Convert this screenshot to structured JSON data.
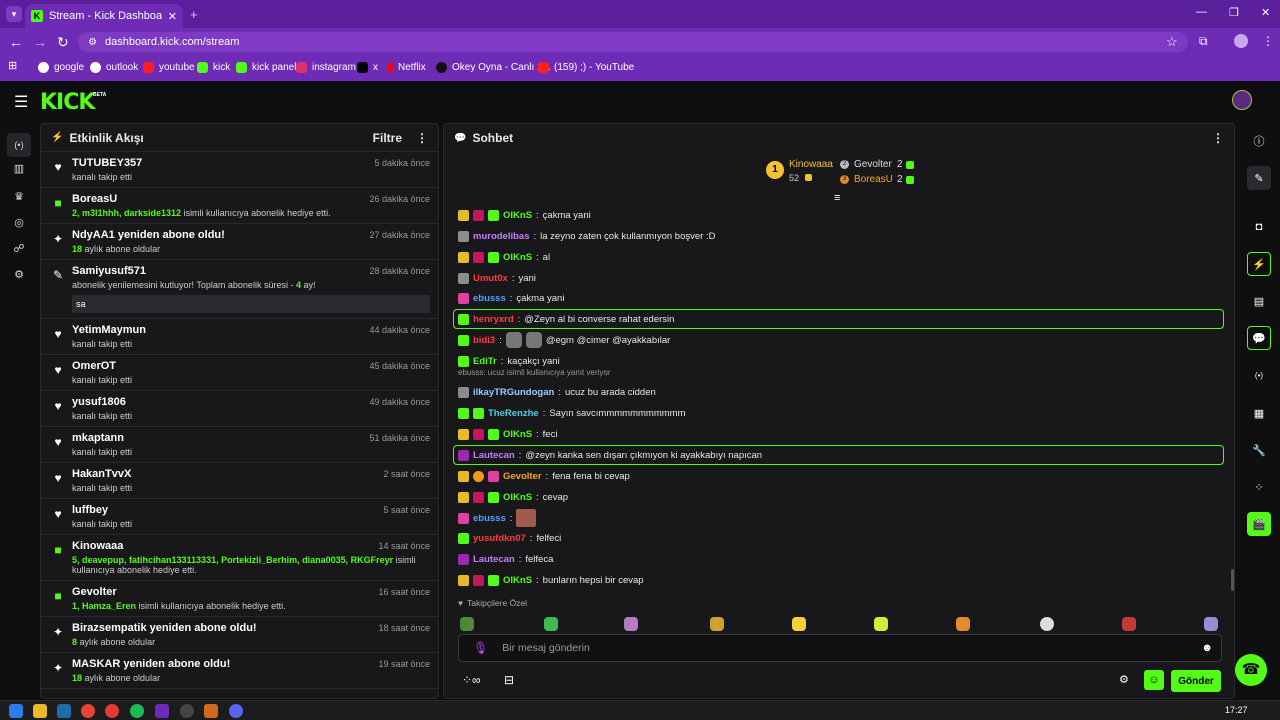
{
  "browser": {
    "tab_title": "Stream - Kick Dashboard",
    "url": "dashboard.kick.com/stream",
    "bookmarks": [
      "google",
      "outlook",
      "youtube",
      "kick",
      "kick panel",
      "instagram",
      "x",
      "Netflix",
      "Okey Oyna - Canlı 1...",
      "(159) ;) - YouTube"
    ]
  },
  "app": {
    "logo": "KICK",
    "logo_badge": "BETA"
  },
  "activity": {
    "title": "Etkinlik Akışı",
    "filter_label": "Filtre",
    "events": [
      {
        "icon": "heart-icon",
        "name": "TUTUBEY357",
        "sub": "kanalı takip etti",
        "time": "5 dakika önce"
      },
      {
        "icon": "gift-icon",
        "name": "BoreasU",
        "sub_hl": "2, m3l1hhh, darkside1312",
        "sub": " isimli kullanıcıya abonelik hediye etti.",
        "time": "26 dakika önce"
      },
      {
        "icon": "sparkle-icon",
        "name": "NdyAA1 yeniden abone oldu!",
        "sub_hl": "18",
        "sub": " aylık abone oldular",
        "time": "27 dakika önce"
      },
      {
        "icon": "party-icon",
        "name": "Samiyusuf571",
        "sub": "abonelik yenilemesini kutluyor! Toplam abonelik süresi - ",
        "sub_hl2": "4",
        "sub_end": " ay!",
        "message": "sa",
        "time": "28 dakika önce"
      },
      {
        "icon": "heart-icon",
        "name": "YetimMaymun",
        "sub": "kanalı takip etti",
        "time": "44 dakika önce"
      },
      {
        "icon": "heart-icon",
        "name": "OmerOT",
        "sub": "kanalı takip etti",
        "time": "45 dakika önce"
      },
      {
        "icon": "heart-icon",
        "name": "yusuf1806",
        "sub": "kanalı takip etti",
        "time": "49 dakika önce"
      },
      {
        "icon": "heart-icon",
        "name": "mkaptann",
        "sub": "kanalı takip etti",
        "time": "51 dakika önce"
      },
      {
        "icon": "heart-icon",
        "name": "HakanTvvX",
        "sub": "kanalı takip etti",
        "time": "2 saat önce"
      },
      {
        "icon": "heart-icon",
        "name": "luffbey",
        "sub": "kanalı takip etti",
        "time": "5 saat önce"
      },
      {
        "icon": "gift-icon",
        "name": "Kinowaaa",
        "sub_hl": "5, deavepup, fatihcihan133113331, Portekizli_Berhim, diana0035, RKGFreyr",
        "sub": " isimli kullanıcıya abonelik hediye etti.",
        "time": "14 saat önce"
      },
      {
        "icon": "gift-icon",
        "name": "Gevolter",
        "sub_hl": "1, Hamza_Eren",
        "sub": " isimli kullanıcıya abonelik hediye etti.",
        "time": "16 saat önce"
      },
      {
        "icon": "sparkle-icon",
        "name": "Birazsempatik yeniden abone oldu!",
        "sub_hl": "8",
        "sub": " aylık abone oldular",
        "time": "18 saat önce"
      },
      {
        "icon": "sparkle-icon",
        "name": "MASKAR yeniden abone oldu!",
        "sub_hl": "18",
        "sub": " aylık abone oldular",
        "time": "19 saat önce"
      }
    ]
  },
  "chat": {
    "title": "Sohbet",
    "leaders": [
      {
        "rank": "1",
        "name": "Kinowaaa",
        "count": "52"
      },
      {
        "rank": "2",
        "name": "Gevolter",
        "count": "2"
      },
      {
        "rank": "3",
        "name": "BoreasU",
        "count": "2"
      }
    ],
    "messages": [
      {
        "user": "OIKnS",
        "color": "#53fc18",
        "badges": [
          "crown",
          "red",
          "green"
        ],
        "text": "çakma yani"
      },
      {
        "user": "murodelibas",
        "color": "#c77dff",
        "badges": [
          "gray"
        ],
        "text": "la zeyno zaten çok kullanmıyon boşver :D"
      },
      {
        "user": "OIKnS",
        "color": "#53fc18",
        "badges": [
          "crown",
          "red",
          "green"
        ],
        "text": "al"
      },
      {
        "user": "Umut0x",
        "color": "#ff3b3b",
        "badges": [
          "gray"
        ],
        "text": "yani"
      },
      {
        "user": "ebusss",
        "color": "#4aa3ff",
        "badges": [
          "pink"
        ],
        "text": "çakma yani"
      },
      {
        "user": "henryxrd",
        "color": "#ff3b3b",
        "badges": [
          "green"
        ],
        "text": "@Zeyn al bi converse rahat edersin",
        "highlight": true
      },
      {
        "user": "bidi3",
        "color": "#ff3b3b",
        "badges": [
          "green"
        ],
        "text": "@egm @cimer @ayakkabılar"
      },
      {
        "user": "EdiTr",
        "color": "#53fc18",
        "badges": [
          "green"
        ],
        "text": "kaçakçı yani"
      },
      {
        "reply": "ebusss: ucuz isimli kullanıcıya yanıt veriyor",
        "user": "ilkayTRGundogan",
        "color": "#9ad0ff",
        "badges": [
          "gray"
        ],
        "text": "ucuz bu arada cidden"
      },
      {
        "user": "TheRenzhe",
        "color": "#4dd0e1",
        "badges": [
          "green",
          "green"
        ],
        "text": "Sayın savcımmmmmmmmmmm"
      },
      {
        "user": "OIKnS",
        "color": "#53fc18",
        "badges": [
          "crown",
          "red",
          "green"
        ],
        "text": "feci"
      },
      {
        "user": "Lautecan",
        "color": "#c77dff",
        "badges": [
          "purple"
        ],
        "text": "@zeyn kanka sen dışarı çıkmıyon ki ayakkabıyı napıcan",
        "highlight": true
      },
      {
        "user": "Gevolter",
        "color": "#f5a623",
        "badges": [
          "crown",
          "orange",
          "pink"
        ],
        "text": "fena fena bi cevap"
      },
      {
        "user": "OIKnS",
        "color": "#53fc18",
        "badges": [
          "crown",
          "red",
          "green"
        ],
        "text": "cevap"
      },
      {
        "user": "ebusss",
        "color": "#4aa3ff",
        "badges": [
          "pink"
        ],
        "text": ""
      },
      {
        "user": "yusufdkn07",
        "color": "#ff3b3b",
        "badges": [
          "green"
        ],
        "text": "felfeci"
      },
      {
        "user": "Lautecan",
        "color": "#c77dff",
        "badges": [
          "purple"
        ],
        "text": "felfeca"
      },
      {
        "user": "OIKnS",
        "color": "#53fc18",
        "badges": [
          "crown",
          "red",
          "green"
        ],
        "text": "bunların hepsi bir cevap"
      }
    ],
    "emote_tab": "Takipçilere Özel",
    "input_placeholder": "Bir mesaj gönderin",
    "send_label": "Gönder"
  },
  "taskbar": {
    "time": "17:27"
  }
}
